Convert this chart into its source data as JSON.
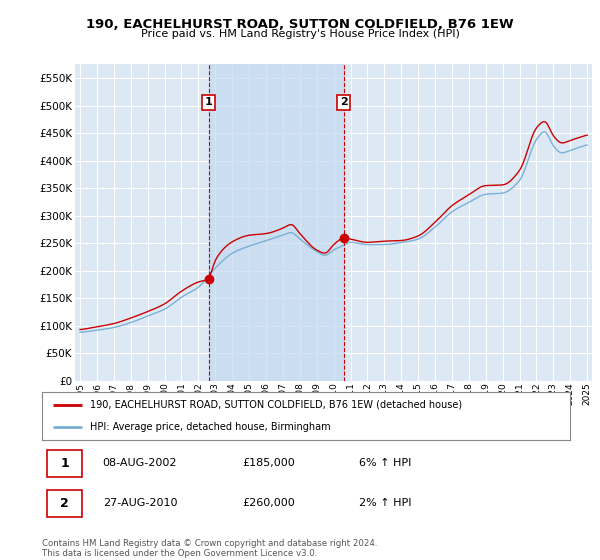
{
  "title": "190, EACHELHURST ROAD, SUTTON COLDFIELD, B76 1EW",
  "subtitle": "Price paid vs. HM Land Registry's House Price Index (HPI)",
  "legend_label_red": "190, EACHELHURST ROAD, SUTTON COLDFIELD, B76 1EW (detached house)",
  "legend_label_blue": "HPI: Average price, detached house, Birmingham",
  "sale1_date": "08-AUG-2002",
  "sale1_price": "£185,000",
  "sale1_hpi": "6% ↑ HPI",
  "sale2_date": "27-AUG-2010",
  "sale2_price": "£260,000",
  "sale2_hpi": "2% ↑ HPI",
  "footer": "Contains HM Land Registry data © Crown copyright and database right 2024.\nThis data is licensed under the Open Government Licence v3.0.",
  "ylim": [
    0,
    575000
  ],
  "yticks": [
    0,
    50000,
    100000,
    150000,
    200000,
    250000,
    300000,
    350000,
    400000,
    450000,
    500000,
    550000
  ],
  "background_color": "#ffffff",
  "plot_bg_color": "#dce9f5",
  "shade_color": "#c5daf0",
  "grid_color": "#ffffff",
  "red_color": "#cc0000",
  "blue_color": "#7ab0d4",
  "vline_color": "#cc0000",
  "sale1_x": 2002.6,
  "sale2_x": 2010.6,
  "sale1_y": 185000,
  "sale2_y": 260000,
  "xmin": 1994.7,
  "xmax": 2025.3
}
